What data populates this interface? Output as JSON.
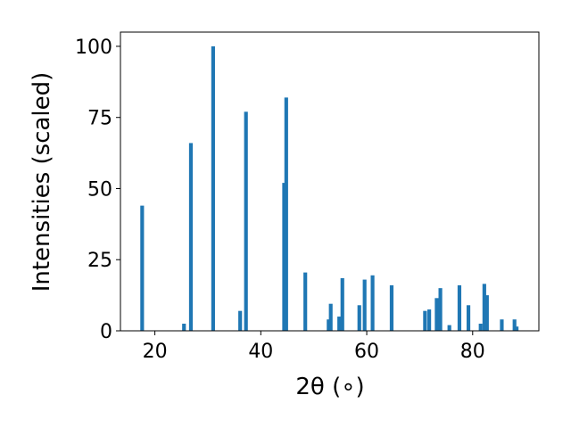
{
  "chart_data": {
    "type": "bar",
    "title": "",
    "xlabel": "2θ (∘)",
    "ylabel": "Intensities (scaled)",
    "xlim": [
      13.5,
      92.5
    ],
    "ylim": [
      0,
      105
    ],
    "xticks": [
      20,
      40,
      60,
      80
    ],
    "yticks": [
      0,
      25,
      50,
      75,
      100
    ],
    "grid": false,
    "bar_color": "#1f77b4",
    "bar_width": 0.7,
    "series": [
      {
        "x": [
          17.6,
          25.5,
          26.8,
          31.0,
          36.1,
          37.2,
          44.4,
          44.8,
          48.4,
          52.8,
          53.2,
          54.8,
          55.4,
          58.6,
          59.6,
          61.1,
          64.7,
          71.0,
          71.8,
          73.2,
          73.9,
          75.6,
          77.5,
          79.2,
          81.5,
          82.2,
          82.7,
          85.5,
          87.9,
          88.3
        ],
        "values": [
          44,
          2.5,
          66,
          100,
          7,
          77,
          52,
          82,
          20.5,
          4,
          9.5,
          5,
          18.5,
          9,
          18,
          19.5,
          16,
          7,
          7.5,
          11.5,
          15,
          2,
          16,
          9,
          2.5,
          16.5,
          12.5,
          4,
          4,
          1.5
        ]
      }
    ]
  }
}
